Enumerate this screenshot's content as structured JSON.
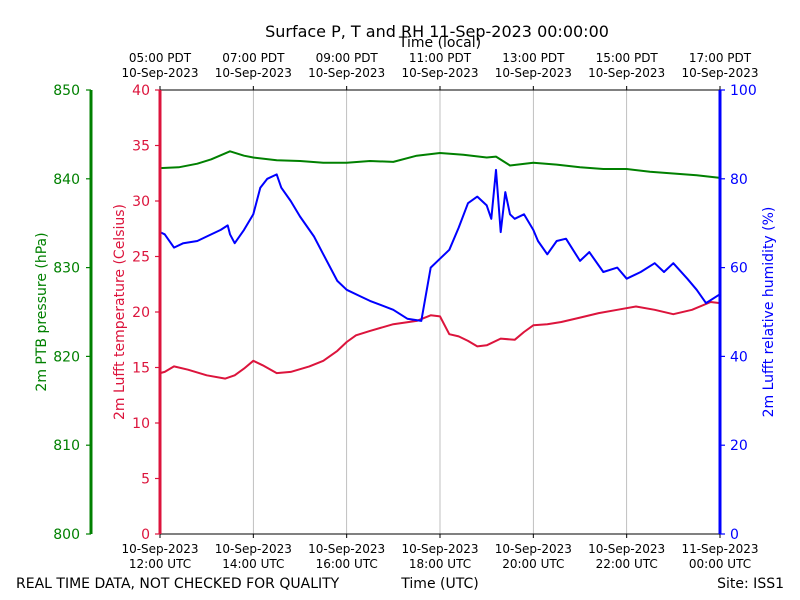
{
  "chart_data": {
    "type": "line",
    "title": "Surface P, T and RH 11-Sep-2023 00:00:00",
    "top_axis_title": "Time (local)",
    "xlabel": "Time (UTC)",
    "footer_left": "REAL TIME DATA, NOT CHECKED FOR QUALITY",
    "footer_right": "Site: ISS1",
    "x_range_hours_utc": [
      12,
      24
    ],
    "bottom_ticks": [
      {
        "h": 12,
        "line1": "10-Sep-2023",
        "line2": "12:00 UTC"
      },
      {
        "h": 14,
        "line1": "10-Sep-2023",
        "line2": "14:00 UTC"
      },
      {
        "h": 16,
        "line1": "10-Sep-2023",
        "line2": "16:00 UTC"
      },
      {
        "h": 18,
        "line1": "10-Sep-2023",
        "line2": "18:00 UTC"
      },
      {
        "h": 20,
        "line1": "10-Sep-2023",
        "line2": "20:00 UTC"
      },
      {
        "h": 22,
        "line1": "10-Sep-2023",
        "line2": "22:00 UTC"
      },
      {
        "h": 24,
        "line1": "11-Sep-2023",
        "line2": "00:00 UTC"
      }
    ],
    "top_ticks": [
      {
        "h": 12,
        "line1": "05:00 PDT",
        "line2": "10-Sep-2023"
      },
      {
        "h": 14,
        "line1": "07:00 PDT",
        "line2": "10-Sep-2023"
      },
      {
        "h": 16,
        "line1": "09:00 PDT",
        "line2": "10-Sep-2023"
      },
      {
        "h": 18,
        "line1": "11:00 PDT",
        "line2": "10-Sep-2023"
      },
      {
        "h": 20,
        "line1": "13:00 PDT",
        "line2": "10-Sep-2023"
      },
      {
        "h": 22,
        "line1": "15:00 PDT",
        "line2": "10-Sep-2023"
      },
      {
        "h": 24,
        "line1": "17:00 PDT",
        "line2": "10-Sep-2023"
      }
    ],
    "axes": [
      {
        "id": "pressure",
        "label": "2m PTB pressure (hPa)",
        "color": "#008000",
        "ylim": [
          800,
          850
        ],
        "ticks": [
          800,
          810,
          820,
          830,
          840,
          850
        ]
      },
      {
        "id": "temperature",
        "label": "2m Lufft temperature (Celsius)",
        "color": "#dc143c",
        "ylim": [
          0,
          40
        ],
        "ticks": [
          0,
          5,
          10,
          15,
          20,
          25,
          30,
          35,
          40
        ]
      },
      {
        "id": "rh",
        "label": "2m Lufft relative humidity (%)",
        "color": "#0000ff",
        "ylim": [
          0,
          100
        ],
        "ticks": [
          0,
          20,
          40,
          60,
          80,
          100
        ]
      }
    ],
    "series": [
      {
        "name": "2m PTB pressure",
        "axis": "pressure",
        "color": "#008000",
        "x": [
          12.0,
          12.4,
          12.8,
          13.1,
          13.5,
          13.8,
          14.0,
          14.5,
          15.0,
          15.5,
          16.0,
          16.5,
          17.0,
          17.5,
          18.0,
          18.5,
          19.0,
          19.2,
          19.5,
          20.0,
          20.5,
          21.0,
          21.5,
          22.0,
          22.5,
          23.0,
          23.5,
          24.0
        ],
        "values": [
          841.2,
          841.3,
          841.7,
          842.2,
          843.1,
          842.6,
          842.4,
          842.1,
          842.0,
          841.8,
          841.8,
          842.0,
          841.9,
          842.6,
          842.9,
          842.7,
          842.4,
          842.5,
          841.5,
          841.8,
          841.6,
          841.3,
          841.1,
          841.1,
          840.8,
          840.6,
          840.4,
          840.1
        ]
      },
      {
        "name": "2m Lufft temperature",
        "axis": "temperature",
        "color": "#dc143c",
        "x": [
          12.0,
          12.1,
          12.3,
          12.6,
          13.0,
          13.4,
          13.6,
          13.8,
          14.0,
          14.2,
          14.5,
          14.8,
          15.2,
          15.5,
          15.8,
          16.0,
          16.2,
          16.5,
          17.0,
          17.5,
          17.8,
          18.0,
          18.2,
          18.4,
          18.6,
          18.8,
          19.0,
          19.3,
          19.6,
          19.8,
          20.0,
          20.3,
          20.6,
          21.0,
          21.4,
          21.8,
          22.2,
          22.6,
          23.0,
          23.4,
          23.8,
          24.0
        ],
        "values": [
          14.5,
          14.6,
          15.1,
          14.8,
          14.3,
          14.0,
          14.3,
          14.9,
          15.6,
          15.2,
          14.5,
          14.6,
          15.1,
          15.6,
          16.5,
          17.3,
          17.9,
          18.3,
          18.9,
          19.2,
          19.7,
          19.6,
          18.0,
          17.8,
          17.4,
          16.9,
          17.0,
          17.6,
          17.5,
          18.2,
          18.8,
          18.9,
          19.1,
          19.5,
          19.9,
          20.2,
          20.5,
          20.2,
          19.8,
          20.2,
          20.9,
          20.8
        ]
      },
      {
        "name": "2m Lufft relative humidity",
        "axis": "rh",
        "color": "#0000ff",
        "x": [
          12.0,
          12.1,
          12.3,
          12.5,
          12.8,
          13.0,
          13.3,
          13.45,
          13.5,
          13.6,
          13.8,
          14.0,
          14.15,
          14.3,
          14.5,
          14.6,
          14.8,
          15.0,
          15.3,
          15.5,
          15.8,
          16.0,
          16.3,
          16.5,
          17.0,
          17.3,
          17.6,
          17.8,
          18.0,
          18.2,
          18.4,
          18.6,
          18.8,
          19.0,
          19.1,
          19.2,
          19.3,
          19.4,
          19.5,
          19.6,
          19.8,
          20.0,
          20.1,
          20.3,
          20.5,
          20.7,
          21.0,
          21.2,
          21.5,
          21.8,
          22.0,
          22.3,
          22.6,
          22.8,
          23.0,
          23.3,
          23.5,
          23.7,
          24.0
        ],
        "values": [
          68.0,
          67.5,
          64.5,
          65.5,
          66.0,
          67.0,
          68.5,
          69.5,
          67.5,
          65.5,
          68.5,
          72.0,
          78.0,
          80.0,
          81.0,
          78.0,
          75.0,
          71.5,
          67.0,
          63.0,
          57.0,
          55.0,
          53.5,
          52.5,
          50.5,
          48.5,
          48.0,
          60.0,
          62.0,
          64.0,
          69.0,
          74.5,
          76.0,
          74.0,
          71.0,
          82.0,
          68.0,
          77.0,
          72.0,
          71.0,
          72.0,
          68.5,
          66.0,
          63.0,
          66.0,
          66.5,
          61.5,
          63.5,
          59.0,
          60.0,
          57.5,
          59.0,
          61.0,
          59.0,
          61.0,
          57.5,
          55.0,
          52.0,
          54.0
        ]
      }
    ]
  }
}
